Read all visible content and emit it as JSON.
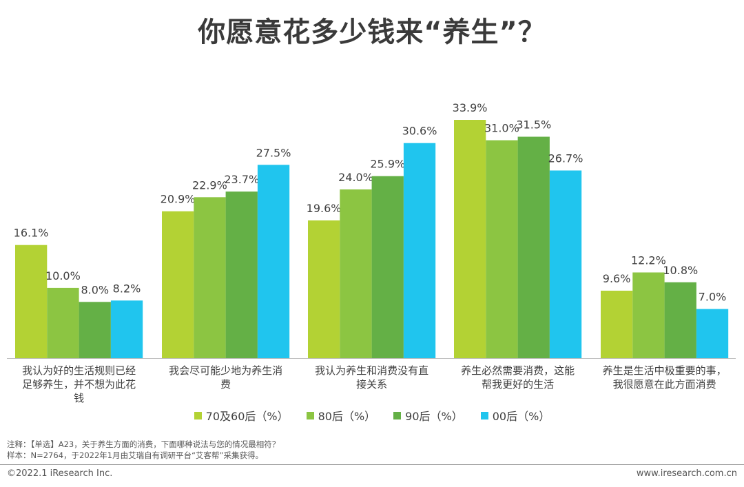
{
  "title": "你愿意花多少钱来“养生”？",
  "chart_data": {
    "type": "bar",
    "categories": [
      [
        "我认为好的生活规则已经",
        "足够养生，并不想为此花",
        "钱"
      ],
      [
        "我会尽可能少地为养生消",
        "费"
      ],
      [
        "我认为养生和消费没有直",
        "接关系"
      ],
      [
        "养生必然需要消费，这能",
        "帮我更好的生活"
      ],
      [
        "养生是生活中极重要的事，",
        "我很愿意在此方面消费"
      ]
    ],
    "series": [
      {
        "name": "70及60后（%）",
        "color": "#b3d234",
        "values": [
          16.1,
          20.9,
          19.6,
          33.9,
          9.6
        ]
      },
      {
        "name": "80后（%）",
        "color": "#8cc542",
        "values": [
          10.0,
          22.9,
          24.0,
          31.0,
          12.2
        ]
      },
      {
        "name": "90后（%）",
        "color": "#64b046",
        "values": [
          8.0,
          23.7,
          25.9,
          31.5,
          10.8
        ]
      },
      {
        "name": "00后（%）",
        "color": "#20c5ee",
        "values": [
          8.2,
          27.5,
          30.6,
          26.7,
          7.0
        ]
      }
    ],
    "data_labels": [
      [
        "16.1%",
        "20.9%",
        "19.6%",
        "33.9%",
        "9.6%"
      ],
      [
        "10.0%",
        "22.9%",
        "24.0%",
        "31.0%",
        "12.2%"
      ],
      [
        "8.0%",
        "23.7%",
        "25.9%",
        "31.5%",
        "10.8%"
      ],
      [
        "8.2%",
        "27.5%",
        "30.6%",
        "26.7%",
        "7.0%"
      ]
    ],
    "ylim": [
      0,
      35
    ],
    "grid": false,
    "legend_position": "bottom"
  },
  "notes": {
    "note1": "注释：【单选】A23，关于养生方面的消费，下面哪种说法与您的情况最相符？",
    "note2": "样本：N=2764，于2022年1月由艾瑞自有调研平台“艾客帮”采集获得。"
  },
  "footer": {
    "copyright": "©2022.1 iResearch Inc.",
    "website": "www.iresearch.com.cn"
  }
}
